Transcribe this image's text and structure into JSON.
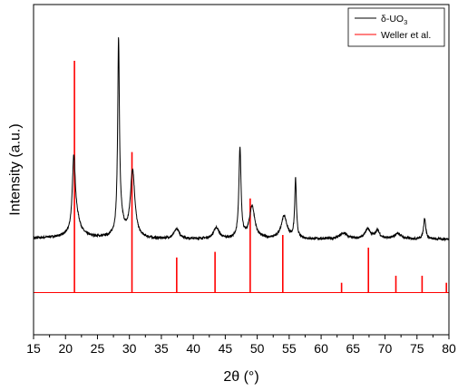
{
  "chart_data": {
    "type": "line",
    "xlabel": "2θ (°)",
    "ylabel": "Intensity (a.u.)",
    "xlim": [
      15,
      80
    ],
    "x_ticks": [
      15,
      20,
      25,
      30,
      35,
      40,
      45,
      50,
      55,
      60,
      65,
      70,
      75,
      80
    ],
    "y_ticks_labeled": false,
    "legend_position": "top-right",
    "series": [
      {
        "name": "δ-UO₃",
        "name_parts": {
          "symbol": "δ-UO",
          "subscript": "3"
        },
        "color": "#000000",
        "baseline": 0.38,
        "noise": 0.008,
        "peaks": [
          {
            "x": 21.3,
            "height": 0.52,
            "width": 0.28
          },
          {
            "x": 21.8,
            "height": 0.1,
            "width": 0.7
          },
          {
            "x": 28.3,
            "height": 1.32,
            "width": 0.16
          },
          {
            "x": 28.6,
            "height": 0.12,
            "width": 0.6
          },
          {
            "x": 30.5,
            "height": 0.48,
            "width": 0.42
          },
          {
            "x": 37.4,
            "height": 0.07,
            "width": 0.5
          },
          {
            "x": 43.6,
            "height": 0.08,
            "width": 0.5
          },
          {
            "x": 47.3,
            "height": 0.64,
            "width": 0.2
          },
          {
            "x": 49.2,
            "height": 0.23,
            "width": 0.5
          },
          {
            "x": 54.2,
            "height": 0.16,
            "width": 0.55
          },
          {
            "x": 56.0,
            "height": 0.42,
            "width": 0.16
          },
          {
            "x": 63.5,
            "height": 0.04,
            "width": 0.7
          },
          {
            "x": 67.3,
            "height": 0.07,
            "width": 0.5
          },
          {
            "x": 68.8,
            "height": 0.06,
            "width": 0.4
          },
          {
            "x": 72.0,
            "height": 0.04,
            "width": 0.6
          },
          {
            "x": 76.2,
            "height": 0.15,
            "width": 0.2
          }
        ]
      },
      {
        "name": "Weller et al.",
        "color": "#ff0000",
        "baseline": 0.0,
        "sticks": [
          {
            "x": 21.4,
            "height": 1.65
          },
          {
            "x": 30.4,
            "height": 1.0
          },
          {
            "x": 37.4,
            "height": 0.25
          },
          {
            "x": 43.4,
            "height": 0.29
          },
          {
            "x": 48.9,
            "height": 0.67
          },
          {
            "x": 54.0,
            "height": 0.41
          },
          {
            "x": 63.2,
            "height": 0.07
          },
          {
            "x": 67.4,
            "height": 0.32
          },
          {
            "x": 71.7,
            "height": 0.12
          },
          {
            "x": 75.8,
            "height": 0.12
          },
          {
            "x": 79.6,
            "height": 0.07
          }
        ]
      }
    ]
  }
}
